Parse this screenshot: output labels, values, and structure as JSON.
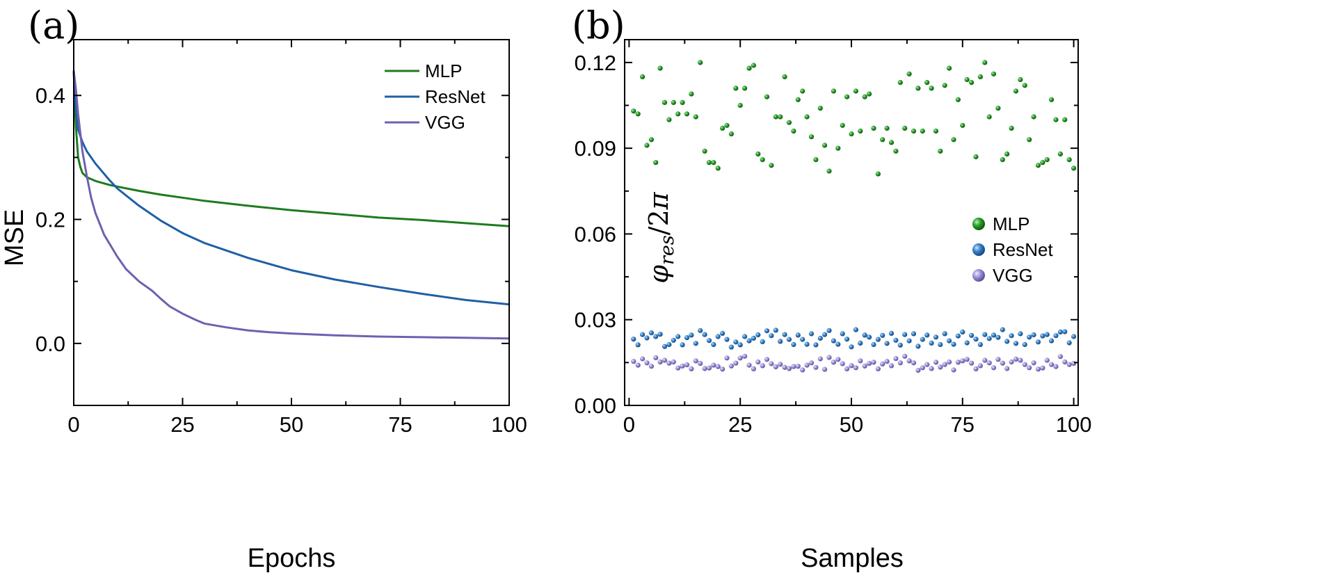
{
  "chart_data": [
    {
      "panel": "(a)",
      "type": "line",
      "title": "",
      "xlabel": "Epochs",
      "ylabel": "MSE",
      "xlim": [
        0,
        100
      ],
      "ylim": [
        -0.1,
        0.49
      ],
      "xticks": [
        0,
        25,
        50,
        75,
        100
      ],
      "xtick_labels": [
        "0",
        "25",
        "50",
        "75",
        "100"
      ],
      "yticks": [
        0.0,
        0.2,
        0.4
      ],
      "ytick_labels": [
        "0.0",
        "0.2",
        "0.4"
      ],
      "grid": false,
      "legend_position": "top-right",
      "series": [
        {
          "name": "MLP",
          "color": "#1e7b1e",
          "x": [
            0,
            0.5,
            1,
            1.5,
            2,
            3,
            5,
            8,
            10,
            15,
            20,
            25,
            30,
            40,
            50,
            60,
            70,
            80,
            90,
            100
          ],
          "y": [
            0.44,
            0.35,
            0.3,
            0.285,
            0.275,
            0.268,
            0.262,
            0.256,
            0.253,
            0.246,
            0.24,
            0.235,
            0.23,
            0.222,
            0.215,
            0.209,
            0.203,
            0.199,
            0.194,
            0.189
          ]
        },
        {
          "name": "ResNet",
          "color": "#1f5fa6",
          "x": [
            0,
            0.5,
            1,
            2,
            3,
            5,
            8,
            10,
            15,
            20,
            25,
            30,
            40,
            50,
            60,
            70,
            80,
            90,
            100
          ],
          "y": [
            0.44,
            0.38,
            0.345,
            0.325,
            0.31,
            0.29,
            0.265,
            0.25,
            0.222,
            0.198,
            0.178,
            0.162,
            0.138,
            0.118,
            0.103,
            0.091,
            0.08,
            0.07,
            0.063
          ]
        },
        {
          "name": "VGG",
          "color": "#7060b0",
          "x": [
            0,
            0.5,
            1,
            2,
            3,
            4,
            5,
            7,
            10,
            12,
            15,
            18,
            20,
            22,
            25,
            28,
            30,
            35,
            40,
            45,
            50,
            60,
            70,
            80,
            90,
            100
          ],
          "y": [
            0.44,
            0.41,
            0.37,
            0.31,
            0.27,
            0.235,
            0.21,
            0.175,
            0.14,
            0.12,
            0.1,
            0.085,
            0.072,
            0.06,
            0.048,
            0.038,
            0.032,
            0.026,
            0.021,
            0.018,
            0.016,
            0.013,
            0.011,
            0.01,
            0.009,
            0.008
          ]
        }
      ]
    },
    {
      "panel": "(b)",
      "type": "scatter",
      "title": "",
      "xlabel": "Samples",
      "ylabel": "φres/2π",
      "xlim": [
        -1,
        101
      ],
      "ylim": [
        0,
        0.128
      ],
      "xticks": [
        0,
        25,
        50,
        75,
        100
      ],
      "xtick_labels": [
        "0",
        "25",
        "50",
        "75",
        "100"
      ],
      "yticks": [
        0.0,
        0.03,
        0.06,
        0.09,
        0.12
      ],
      "ytick_labels": [
        "0.00",
        "0.03",
        "0.06",
        "0.09",
        "0.12"
      ],
      "grid": false,
      "legend_position": "center-right",
      "series": [
        {
          "name": "MLP",
          "color": "#1e8a1e",
          "x": [
            1,
            2,
            3,
            4,
            5,
            6,
            7,
            8,
            9,
            10,
            11,
            12,
            13,
            14,
            15,
            16,
            17,
            18,
            19,
            20,
            21,
            22,
            23,
            24,
            25,
            26,
            27,
            28,
            29,
            30,
            31,
            32,
            33,
            34,
            35,
            36,
            37,
            38,
            39,
            40,
            41,
            42,
            43,
            44,
            45,
            46,
            47,
            48,
            49,
            50,
            51,
            52,
            53,
            54,
            55,
            56,
            57,
            58,
            59,
            60,
            61,
            62,
            63,
            64,
            65,
            66,
            67,
            68,
            69,
            70,
            71,
            72,
            73,
            74,
            75,
            76,
            77,
            78,
            79,
            80,
            81,
            82,
            83,
            84,
            85,
            86,
            87,
            88,
            89,
            90,
            91,
            92,
            93,
            94,
            95,
            96,
            97,
            98,
            99,
            100
          ],
          "y": [
            0.103,
            0.102,
            0.115,
            0.091,
            0.093,
            0.085,
            0.118,
            0.106,
            0.1,
            0.106,
            0.102,
            0.106,
            0.102,
            0.109,
            0.101,
            0.12,
            0.089,
            0.085,
            0.085,
            0.083,
            0.097,
            0.098,
            0.095,
            0.111,
            0.105,
            0.111,
            0.118,
            0.119,
            0.088,
            0.086,
            0.108,
            0.084,
            0.101,
            0.101,
            0.115,
            0.099,
            0.096,
            0.107,
            0.11,
            0.101,
            0.094,
            0.086,
            0.104,
            0.091,
            0.082,
            0.11,
            0.09,
            0.098,
            0.108,
            0.095,
            0.11,
            0.096,
            0.108,
            0.109,
            0.097,
            0.081,
            0.093,
            0.097,
            0.092,
            0.089,
            0.113,
            0.097,
            0.116,
            0.096,
            0.111,
            0.096,
            0.113,
            0.111,
            0.096,
            0.089,
            0.112,
            0.118,
            0.093,
            0.107,
            0.098,
            0.114,
            0.113,
            0.087,
            0.115,
            0.12,
            0.101,
            0.116,
            0.104,
            0.086,
            0.088,
            0.097,
            0.11,
            0.114,
            0.112,
            0.093,
            0.101,
            0.084,
            0.085,
            0.086,
            0.107,
            0.1,
            0.088,
            0.1,
            0.086,
            0.083
          ]
        },
        {
          "name": "ResNet",
          "color": "#2f7ac0",
          "x": [
            1,
            2,
            3,
            4,
            5,
            6,
            7,
            8,
            9,
            10,
            11,
            12,
            13,
            14,
            15,
            16,
            17,
            18,
            19,
            20,
            21,
            22,
            23,
            24,
            25,
            26,
            27,
            28,
            29,
            30,
            31,
            32,
            33,
            34,
            35,
            36,
            37,
            38,
            39,
            40,
            41,
            42,
            43,
            44,
            45,
            46,
            47,
            48,
            49,
            50,
            51,
            52,
            53,
            54,
            55,
            56,
            57,
            58,
            59,
            60,
            61,
            62,
            63,
            64,
            65,
            66,
            67,
            68,
            69,
            70,
            71,
            72,
            73,
            74,
            75,
            76,
            77,
            78,
            79,
            80,
            81,
            82,
            83,
            84,
            85,
            86,
            87,
            88,
            89,
            90,
            91,
            92,
            93,
            94,
            95,
            96,
            97,
            98,
            99,
            100
          ],
          "y": [
            0.0232,
            0.0212,
            0.0248,
            0.0236,
            0.0254,
            0.0241,
            0.0249,
            0.0206,
            0.0213,
            0.0228,
            0.0241,
            0.0212,
            0.0237,
            0.0246,
            0.0217,
            0.0262,
            0.0248,
            0.0227,
            0.0213,
            0.0241,
            0.0252,
            0.0231,
            0.0204,
            0.0222,
            0.0212,
            0.0241,
            0.0226,
            0.0235,
            0.0247,
            0.0223,
            0.0261,
            0.0244,
            0.0263,
            0.0224,
            0.0248,
            0.0231,
            0.0213,
            0.0246,
            0.0231,
            0.0214,
            0.0251,
            0.0212,
            0.0235,
            0.0248,
            0.0262,
            0.0226,
            0.0214,
            0.0251,
            0.0232,
            0.0205,
            0.0265,
            0.0218,
            0.0246,
            0.0239,
            0.0213,
            0.0231,
            0.0245,
            0.0217,
            0.0252,
            0.0228,
            0.0211,
            0.0248,
            0.0226,
            0.0251,
            0.0207,
            0.0231,
            0.0246,
            0.0218,
            0.0239,
            0.0213,
            0.0251,
            0.0226,
            0.0214,
            0.0243,
            0.0257,
            0.0219,
            0.0245,
            0.0232,
            0.0213,
            0.0248,
            0.0234,
            0.0246,
            0.0238,
            0.0265,
            0.0224,
            0.0244,
            0.0217,
            0.0251,
            0.0213,
            0.0239,
            0.0247,
            0.0222,
            0.0243,
            0.0248,
            0.0226,
            0.0244,
            0.0257,
            0.0258,
            0.0219,
            0.0241
          ]
        },
        {
          "name": "VGG",
          "color": "#8c7ec8",
          "x": [
            1,
            2,
            3,
            4,
            5,
            6,
            7,
            8,
            9,
            10,
            11,
            12,
            13,
            14,
            15,
            16,
            17,
            18,
            19,
            20,
            21,
            22,
            23,
            24,
            25,
            26,
            27,
            28,
            29,
            30,
            31,
            32,
            33,
            34,
            35,
            36,
            37,
            38,
            39,
            40,
            41,
            42,
            43,
            44,
            45,
            46,
            47,
            48,
            49,
            50,
            51,
            52,
            53,
            54,
            55,
            56,
            57,
            58,
            59,
            60,
            61,
            62,
            63,
            64,
            65,
            66,
            67,
            68,
            69,
            70,
            71,
            72,
            73,
            74,
            75,
            76,
            77,
            78,
            79,
            80,
            81,
            82,
            83,
            84,
            85,
            86,
            87,
            88,
            89,
            90,
            91,
            92,
            93,
            94,
            95,
            96,
            97,
            98,
            99,
            100
          ],
          "y": [
            0.0154,
            0.0141,
            0.0163,
            0.0149,
            0.0137,
            0.0167,
            0.0152,
            0.0158,
            0.0148,
            0.0152,
            0.0131,
            0.0138,
            0.0142,
            0.0128,
            0.0156,
            0.0147,
            0.0129,
            0.0131,
            0.0141,
            0.0136,
            0.0127,
            0.0166,
            0.0138,
            0.0148,
            0.0166,
            0.0172,
            0.0141,
            0.0128,
            0.0152,
            0.0139,
            0.0161,
            0.0146,
            0.0135,
            0.0144,
            0.0133,
            0.0129,
            0.0136,
            0.0137,
            0.0124,
            0.0141,
            0.0149,
            0.0133,
            0.0163,
            0.0126,
            0.0168,
            0.0151,
            0.0161,
            0.0146,
            0.0128,
            0.0139,
            0.0132,
            0.0156,
            0.0138,
            0.0147,
            0.0151,
            0.0128,
            0.0145,
            0.0154,
            0.0139,
            0.0164,
            0.0149,
            0.0172,
            0.0156,
            0.0149,
            0.0123,
            0.0132,
            0.0143,
            0.0129,
            0.0151,
            0.0134,
            0.0143,
            0.0152,
            0.0124,
            0.0151,
            0.0156,
            0.0161,
            0.0148,
            0.0128,
            0.0139,
            0.0158,
            0.0149,
            0.0132,
            0.0161,
            0.0148,
            0.0129,
            0.0152,
            0.0162,
            0.0158,
            0.0143,
            0.0132,
            0.0149,
            0.0127,
            0.0131,
            0.0158,
            0.0143,
            0.0136,
            0.0171,
            0.0152,
            0.0143,
            0.0147
          ]
        }
      ]
    }
  ]
}
